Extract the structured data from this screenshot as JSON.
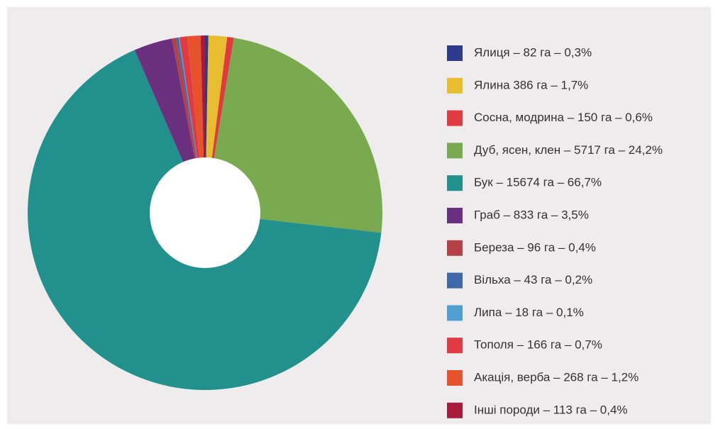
{
  "chart_data": {
    "type": "pie",
    "categories": [
      "Ялиця – 82 га – 0,3%",
      "Ялина 386 га – 1,7%",
      "Сосна, модрина – 150 га – 0,6%",
      "Дуб, ясен, клен – 5717 га – 24,2%",
      "Бук – 15674 га – 66,7%",
      "Граб – 833 га – 3,5%",
      "Береза – 96 га – 0,4%",
      "Вільха – 43 га – 0,2%",
      "Липа – 18 га – 0,1%",
      "Тополя – 166 га – 0,7%",
      "Акація, верба – 268 га – 1,2%",
      "Інші породи – 113 га – 0,4%"
    ],
    "values": [
      0.3,
      1.7,
      0.6,
      24.2,
      66.7,
      3.5,
      0.4,
      0.2,
      0.1,
      0.7,
      1.2,
      0.4
    ],
    "colors": [
      "#2e3a8c",
      "#e8bd30",
      "#e03a3e",
      "#7aaa4f",
      "#22918e",
      "#6a2f7e",
      "#b54146",
      "#3f68a8",
      "#4f9fd1",
      "#e13a42",
      "#e5522b",
      "#a8193c"
    ],
    "legend": "right"
  }
}
